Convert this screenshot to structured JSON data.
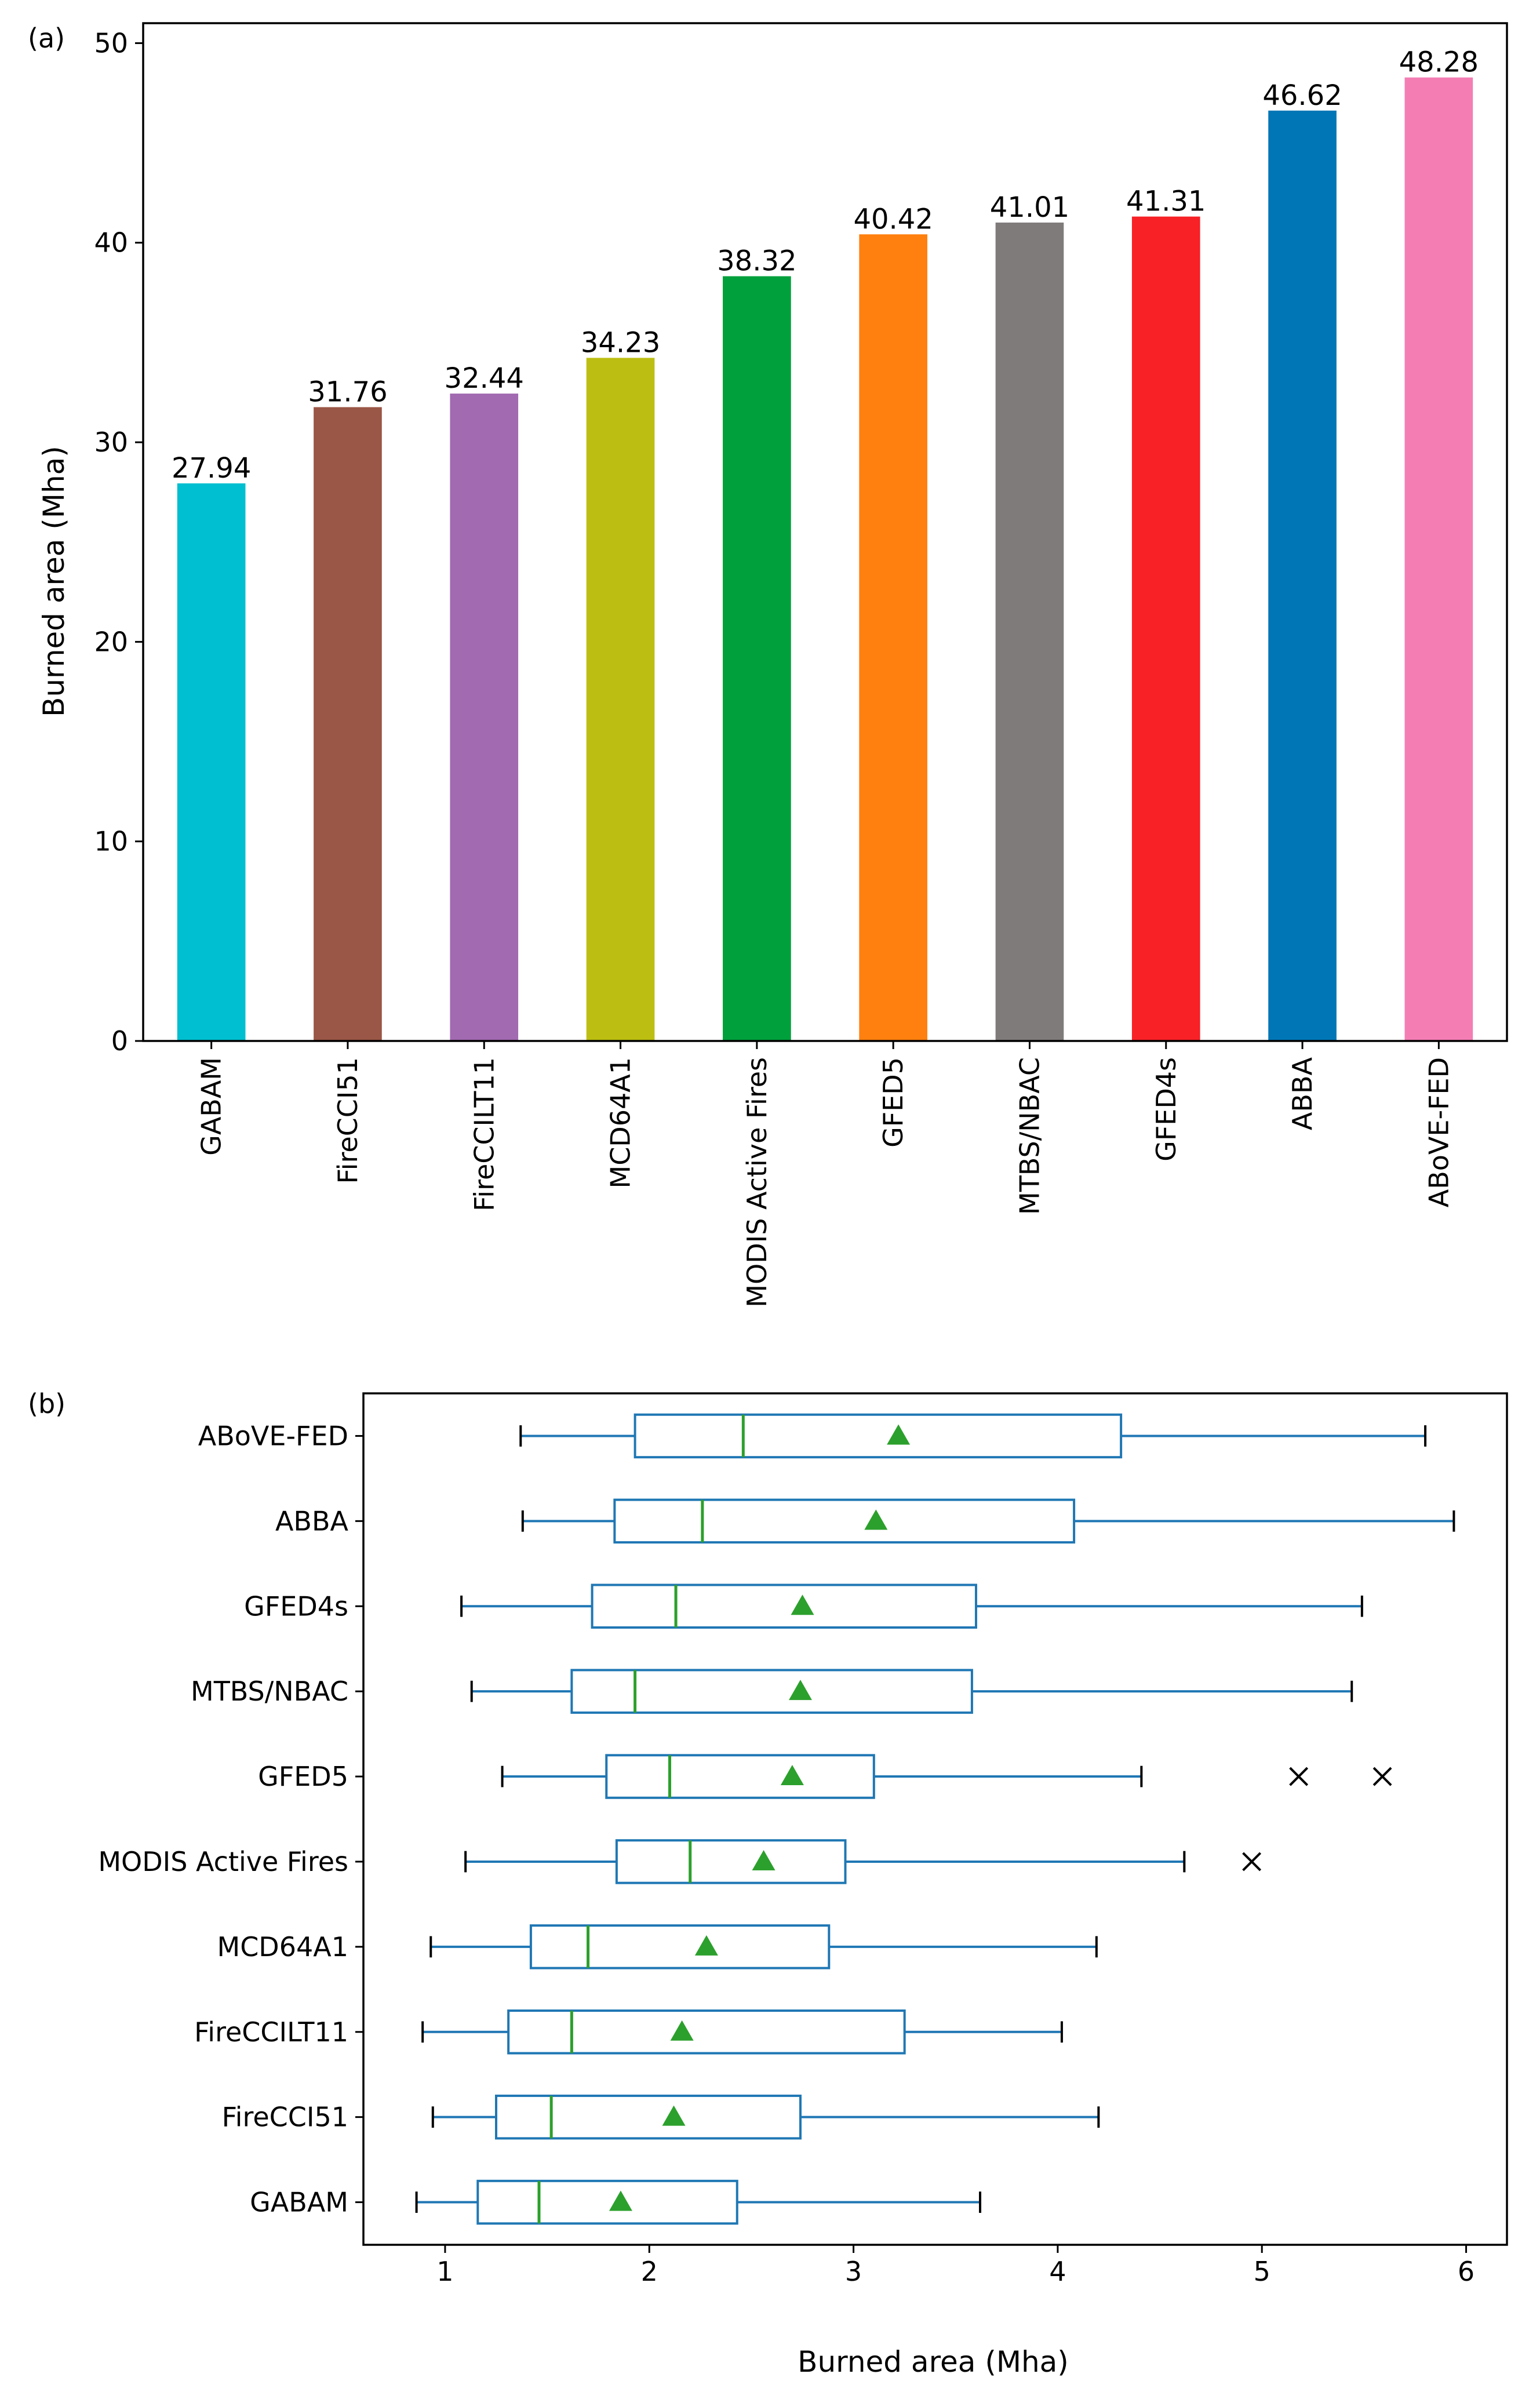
{
  "chart_data": [
    {
      "type": "bar",
      "panel_label": "(a)",
      "title": "",
      "xlabel": "",
      "ylabel": "Burned area (Mha)",
      "ylim": [
        0,
        51
      ],
      "yticks": [
        0,
        10,
        20,
        30,
        40,
        50
      ],
      "categories": [
        "GABAM",
        "FireCCI51",
        "FireCCILT11",
        "MCD64A1",
        "MODIS Active Fires",
        "GFED5",
        "MTBS/NBAC",
        "GFED4s",
        "ABBA",
        "ABoVE-FED"
      ],
      "values": [
        27.94,
        31.76,
        32.44,
        34.23,
        38.32,
        40.42,
        41.01,
        41.31,
        46.62,
        48.28
      ],
      "value_labels": [
        "27.94",
        "31.76",
        "32.44",
        "34.23",
        "38.32",
        "40.42",
        "41.01",
        "41.31",
        "46.62",
        "48.28"
      ],
      "colors": [
        "#00bfd0",
        "#9a5646",
        "#a26ab1",
        "#bcbe12",
        "#00a03c",
        "#ff800e",
        "#807b7b",
        "#f72126",
        "#0176b6",
        "#f47db4"
      ]
    },
    {
      "type": "box",
      "panel_label": "(b)",
      "title": "",
      "xlabel": "Burned area (Mha)",
      "ylabel": "",
      "xlim": [
        0.6,
        6.2
      ],
      "xticks": [
        1,
        2,
        3,
        4,
        5,
        6
      ],
      "box_color": "#1f77b4",
      "median_color": "#2ca02c",
      "mean_color": "#2ca02c",
      "series": [
        {
          "name": "GABAM",
          "whisker_low": 0.86,
          "q1": 1.16,
          "median": 1.46,
          "q3": 2.43,
          "whisker_high": 3.62,
          "mean": 1.86,
          "outliers": []
        },
        {
          "name": "FireCCI51",
          "whisker_low": 0.94,
          "q1": 1.25,
          "median": 1.52,
          "q3": 2.74,
          "whisker_high": 4.2,
          "mean": 2.12,
          "outliers": []
        },
        {
          "name": "FireCCILT11",
          "whisker_low": 0.89,
          "q1": 1.31,
          "median": 1.62,
          "q3": 3.25,
          "whisker_high": 4.02,
          "mean": 2.16,
          "outliers": []
        },
        {
          "name": "MCD64A1",
          "whisker_low": 0.93,
          "q1": 1.42,
          "median": 1.7,
          "q3": 2.88,
          "whisker_high": 4.19,
          "mean": 2.28,
          "outliers": []
        },
        {
          "name": "MODIS Active Fires",
          "whisker_low": 1.1,
          "q1": 1.84,
          "median": 2.2,
          "q3": 2.96,
          "whisker_high": 4.62,
          "mean": 2.56,
          "outliers": [
            4.95
          ]
        },
        {
          "name": "GFED5",
          "whisker_low": 1.28,
          "q1": 1.79,
          "median": 2.1,
          "q3": 3.1,
          "whisker_high": 4.41,
          "mean": 2.7,
          "outliers": [
            5.18,
            5.59
          ]
        },
        {
          "name": "MTBS/NBAC",
          "whisker_low": 1.13,
          "q1": 1.62,
          "median": 1.93,
          "q3": 3.58,
          "whisker_high": 5.44,
          "mean": 2.74,
          "outliers": []
        },
        {
          "name": "GFED4s",
          "whisker_low": 1.08,
          "q1": 1.72,
          "median": 2.13,
          "q3": 3.6,
          "whisker_high": 5.49,
          "mean": 2.75,
          "outliers": []
        },
        {
          "name": "ABBA",
          "whisker_low": 1.38,
          "q1": 1.83,
          "median": 2.26,
          "q3": 4.08,
          "whisker_high": 5.94,
          "mean": 3.11,
          "outliers": []
        },
        {
          "name": "ABoVE-FED",
          "whisker_low": 1.37,
          "q1": 1.93,
          "median": 2.46,
          "q3": 4.31,
          "whisker_high": 5.8,
          "mean": 3.22,
          "outliers": []
        }
      ]
    }
  ]
}
